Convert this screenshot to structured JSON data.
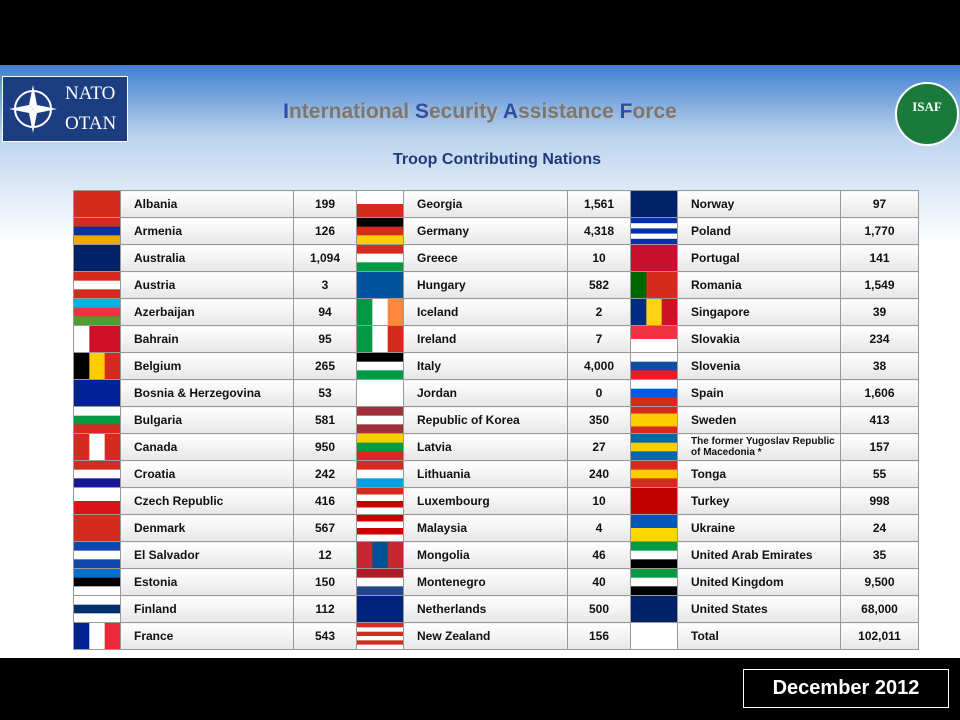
{
  "header": {
    "logo_left": [
      "NATO",
      "OTAN"
    ],
    "title": [
      "I",
      "nternational ",
      "S",
      "ecurity ",
      "A",
      "ssistance ",
      "F",
      "orce"
    ],
    "logo_right": "ISAF",
    "subtitle": "Troop Contributing Nations"
  },
  "table": {
    "rows": [
      [
        "Albania",
        "199",
        "Georgia",
        "1,561",
        "Norway",
        "97"
      ],
      [
        "Armenia",
        "126",
        "Germany",
        "4,318",
        "Poland",
        "1,770"
      ],
      [
        "Australia",
        "1,094",
        "Greece",
        "10",
        "Portugal",
        "141"
      ],
      [
        "Austria",
        "3",
        "Hungary",
        "582",
        "Romania",
        "1,549"
      ],
      [
        "Azerbaijan",
        "94",
        "Iceland",
        "2",
        "Singapore",
        "39"
      ],
      [
        "Bahrain",
        "95",
        "Ireland",
        "7",
        "Slovakia",
        "234"
      ],
      [
        "Belgium",
        "265",
        "Italy",
        "4,000",
        "Slovenia",
        "38"
      ],
      [
        "Bosnia & Herzegovina",
        "53",
        "Jordan",
        "0",
        "Spain",
        "1,606"
      ],
      [
        "Bulgaria",
        "581",
        "Republic of Korea",
        "350",
        "Sweden",
        "413"
      ],
      [
        "Canada",
        "950",
        "Latvia",
        "27",
        "The former Yugoslav Republic of Macedonia *",
        "157"
      ],
      [
        "Croatia",
        "242",
        "Lithuania",
        "240",
        "Tonga",
        "55"
      ],
      [
        "Czech Republic",
        "416",
        "Luxembourg",
        "10",
        "Turkey",
        "998"
      ],
      [
        "Denmark",
        "567",
        "Malaysia",
        "4",
        "Ukraine",
        "24"
      ],
      [
        "El Salvador",
        "12",
        "Mongolia",
        "46",
        "United Arab Emirates",
        "35"
      ],
      [
        "Estonia",
        "150",
        "Montenegro",
        "40",
        "United Kingdom",
        "9,500"
      ],
      [
        "Finland",
        "112",
        "Netherlands",
        "500",
        "United States",
        "68,000"
      ],
      [
        "France",
        "543",
        "New Zealand",
        "156",
        "Total",
        "102,011"
      ]
    ]
  },
  "footer": {
    "date": "December 2012"
  }
}
